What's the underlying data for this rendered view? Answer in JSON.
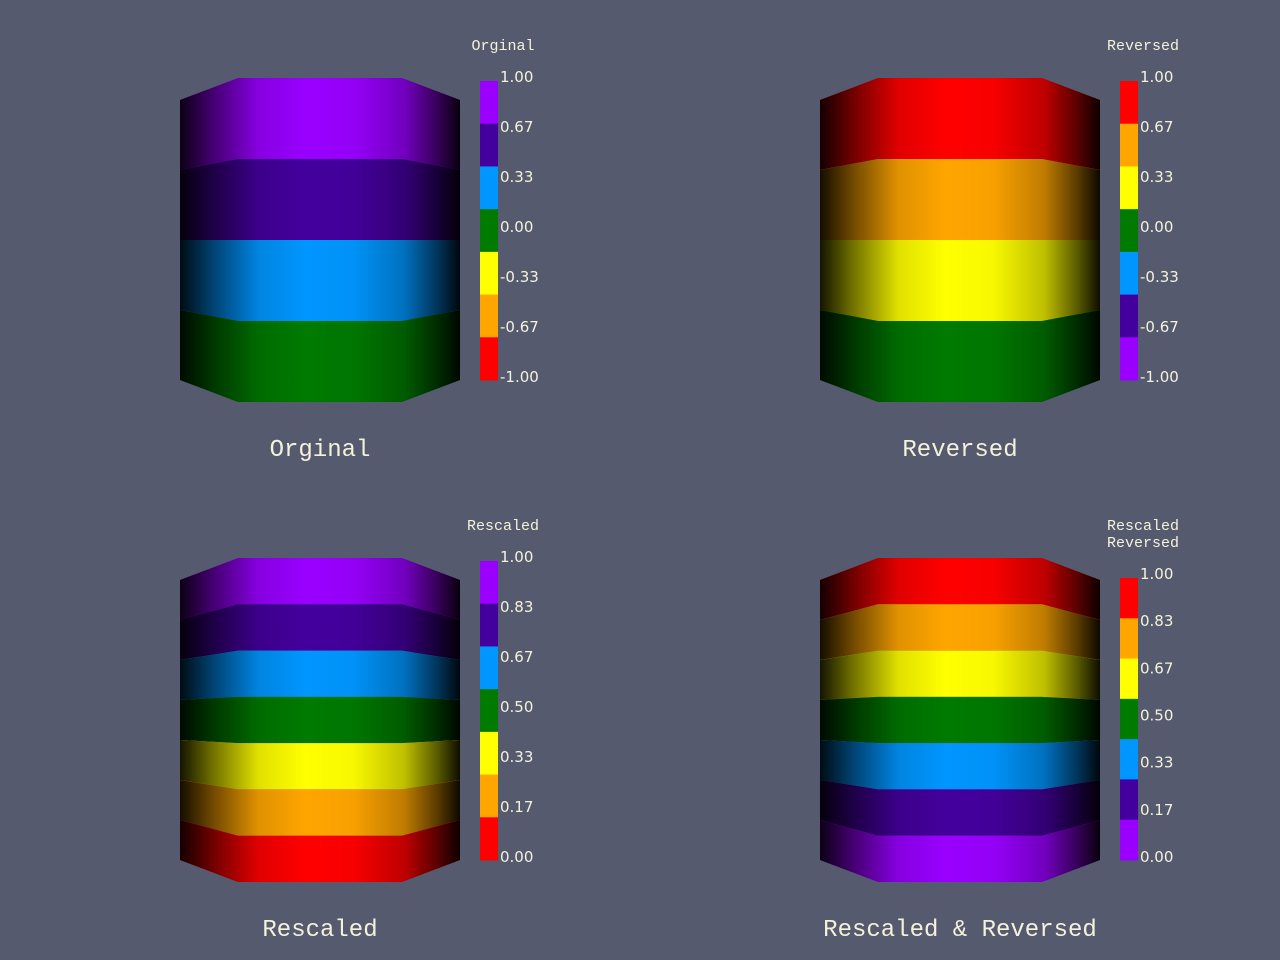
{
  "panels": [
    {
      "caption": "Orginal",
      "colorbar": {
        "title_lines": [
          "Orginal"
        ],
        "ticks": [
          "1.00",
          "0.67",
          "0.33",
          "0.00",
          "-0.33",
          "-0.67",
          "-1.00"
        ],
        "colors_top_to_bottom": [
          "#9900ff",
          "#44009d",
          "#0096ff",
          "#007a00",
          "#ffff00",
          "#ffa500",
          "#ff0000"
        ]
      },
      "cylinder": {
        "bands_top_to_bottom": [
          "#9900ff",
          "#44009d",
          "#0096ff",
          "#007a00"
        ]
      }
    },
    {
      "caption": "Reversed",
      "colorbar": {
        "title_lines": [
          "Reversed"
        ],
        "ticks": [
          "1.00",
          "0.67",
          "0.33",
          "0.00",
          "-0.33",
          "-0.67",
          "-1.00"
        ],
        "colors_top_to_bottom": [
          "#ff0000",
          "#ffa500",
          "#ffff00",
          "#007a00",
          "#0096ff",
          "#44009d",
          "#9900ff"
        ]
      },
      "cylinder": {
        "bands_top_to_bottom": [
          "#ff0000",
          "#ffa500",
          "#ffff00",
          "#007a00"
        ]
      }
    },
    {
      "caption": "Rescaled",
      "colorbar": {
        "title_lines": [
          "Rescaled"
        ],
        "ticks": [
          "1.00",
          "0.83",
          "0.67",
          "0.50",
          "0.33",
          "0.17",
          "0.00"
        ],
        "colors_top_to_bottom": [
          "#9900ff",
          "#44009d",
          "#0096ff",
          "#007a00",
          "#ffff00",
          "#ffa500",
          "#ff0000"
        ]
      },
      "cylinder": {
        "bands_top_to_bottom": [
          "#9900ff",
          "#44009d",
          "#0096ff",
          "#007a00",
          "#ffff00",
          "#ffa500",
          "#ff0000"
        ]
      }
    },
    {
      "caption": "Rescaled & Reversed",
      "colorbar": {
        "title_lines": [
          "Rescaled",
          "Reversed"
        ],
        "ticks": [
          "1.00",
          "0.83",
          "0.67",
          "0.50",
          "0.33",
          "0.17",
          "0.00"
        ],
        "colors_top_to_bottom": [
          "#ff0000",
          "#ffa500",
          "#ffff00",
          "#007a00",
          "#0096ff",
          "#44009d",
          "#9900ff"
        ]
      },
      "cylinder": {
        "bands_top_to_bottom": [
          "#ff0000",
          "#ffa500",
          "#ffff00",
          "#007a00",
          "#0096ff",
          "#44009d",
          "#9900ff"
        ]
      }
    }
  ]
}
